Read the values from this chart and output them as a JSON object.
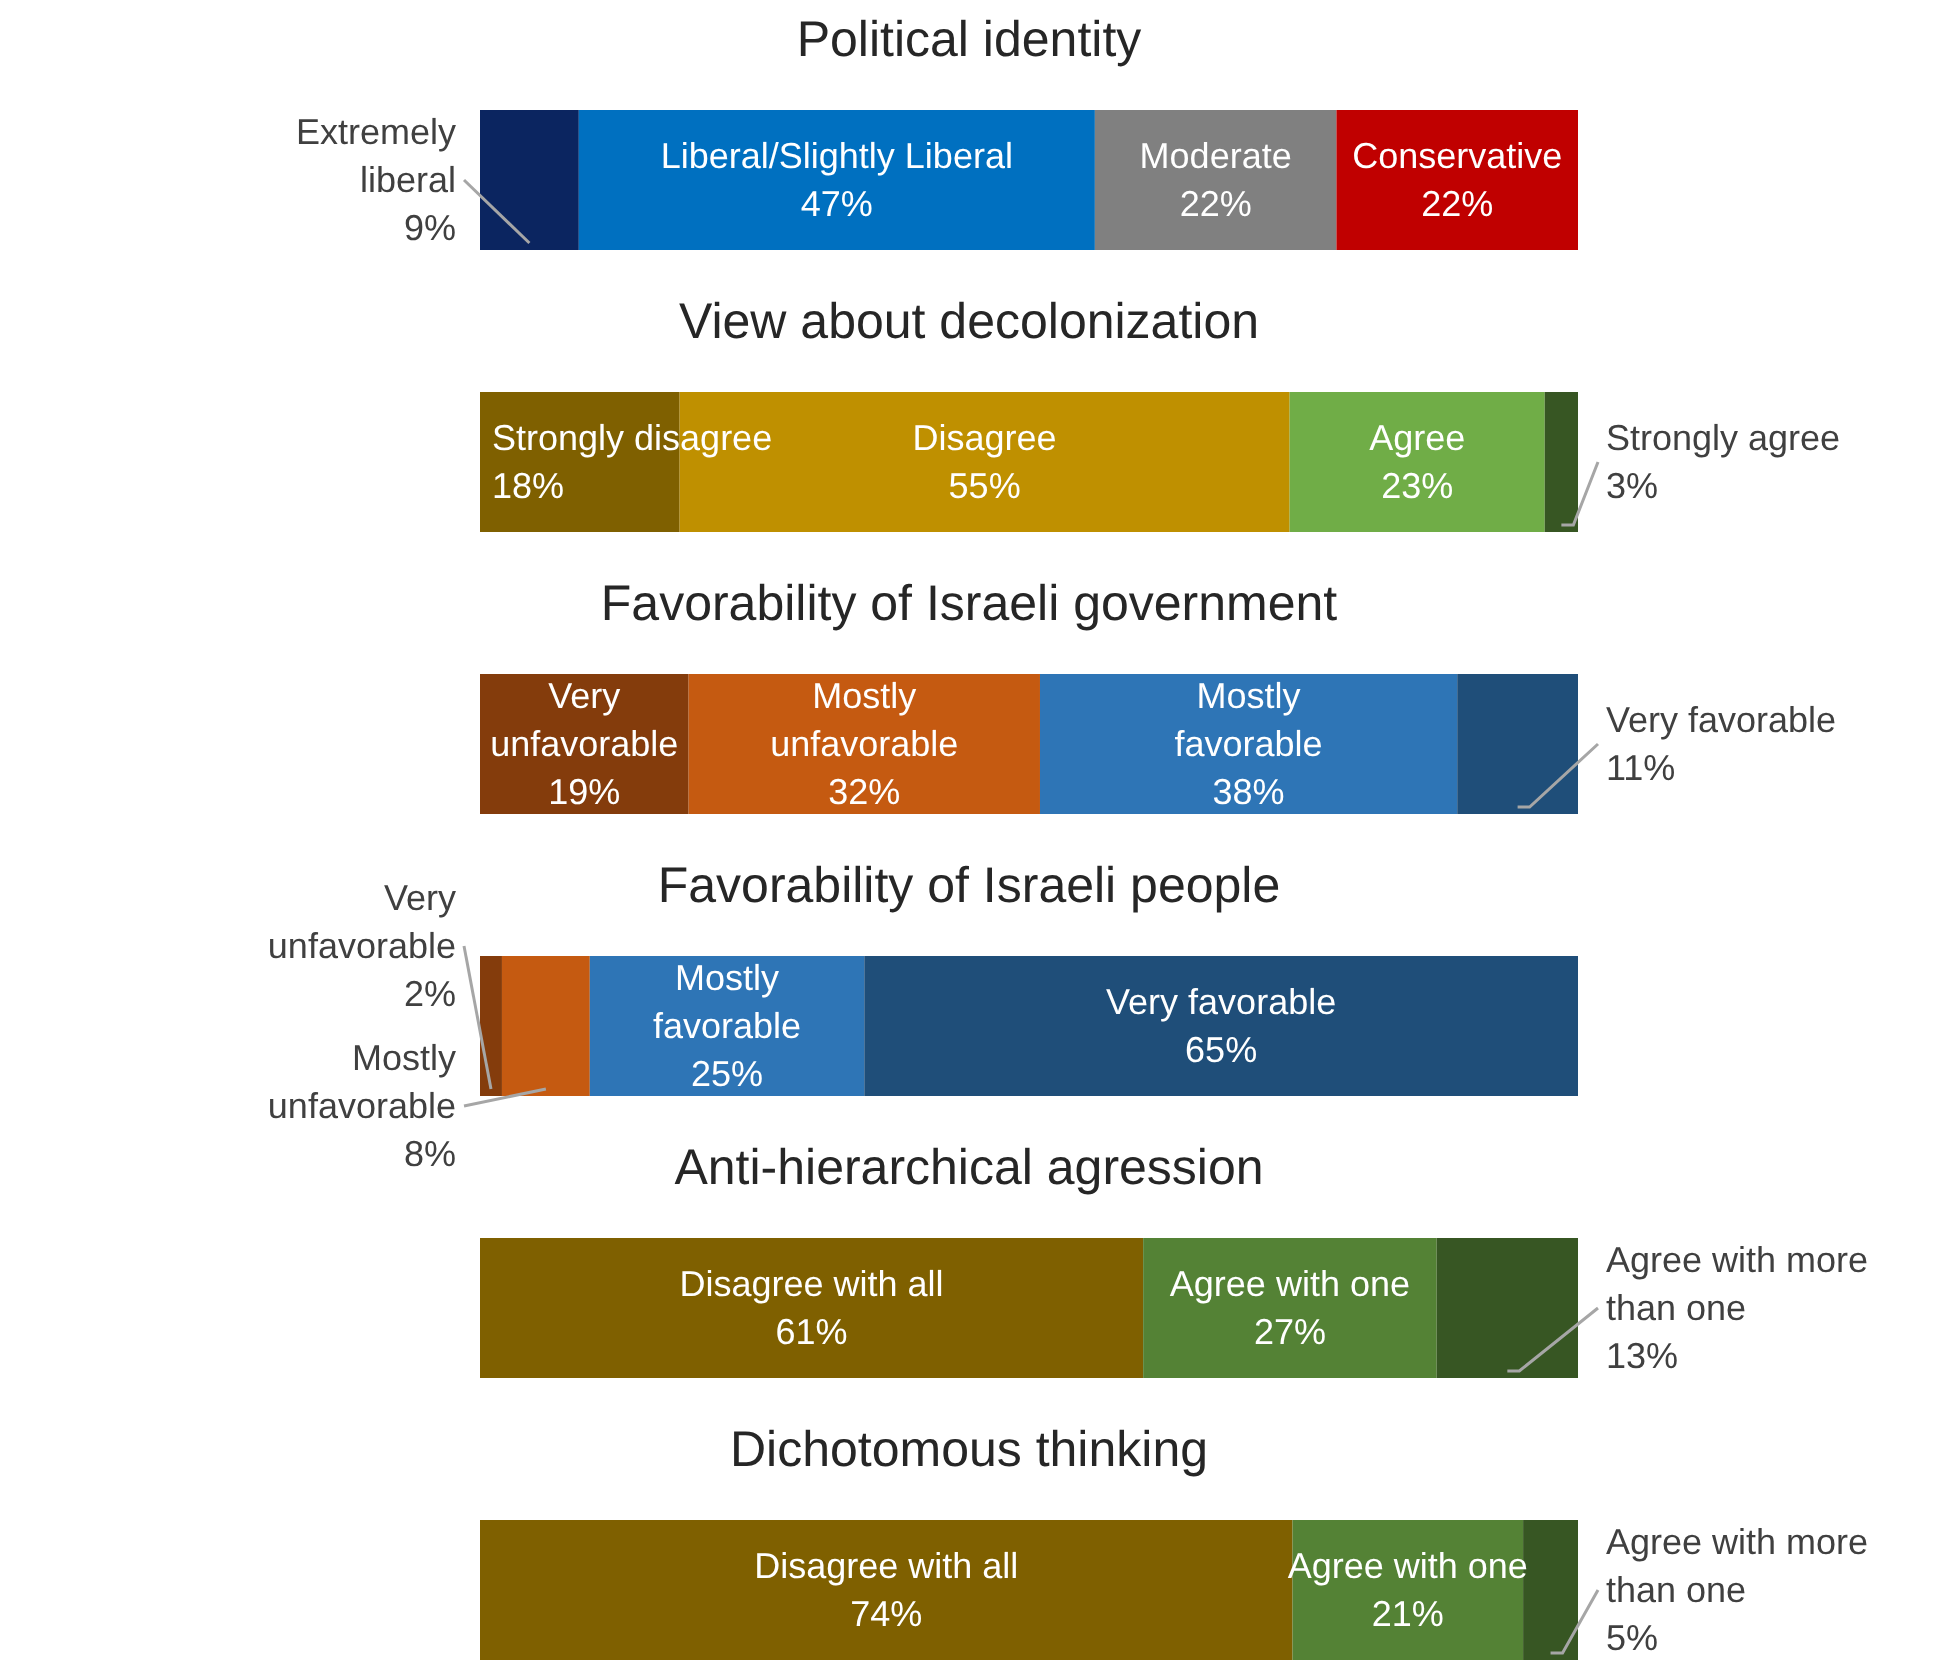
{
  "chart_data": [
    {
      "type": "bar",
      "orientation": "horizontal",
      "stacked": true,
      "title": "Political identity",
      "categories": [
        null
      ],
      "tick_labels": false,
      "series": [
        {
          "name": "Extremely\nliberal",
          "color": "#0b2560",
          "values": [
            9
          ],
          "value_labels": [
            "9%"
          ]
        },
        {
          "name": "Liberal/Slightly Liberal",
          "color": "#0070c0",
          "values": [
            47
          ],
          "value_labels": [
            "47%"
          ]
        },
        {
          "name": "Moderate",
          "color": "#808080",
          "values": [
            22
          ],
          "value_labels": [
            "22%"
          ]
        },
        {
          "name": "Conservative",
          "color": "#c00000",
          "values": [
            22
          ],
          "value_labels": [
            "22%"
          ]
        }
      ]
    },
    {
      "type": "bar",
      "orientation": "horizontal",
      "stacked": true,
      "title": "View about decolonization",
      "categories": [
        null
      ],
      "tick_labels": false,
      "series": [
        {
          "name": "Strongly disagree",
          "color": "#7f6000",
          "values": [
            18
          ],
          "value_labels": [
            "18%"
          ]
        },
        {
          "name": "Disagree",
          "color": "#bf9000",
          "values": [
            55
          ],
          "value_labels": [
            "55%"
          ]
        },
        {
          "name": "Agree",
          "color": "#70ad47",
          "values": [
            23
          ],
          "value_labels": [
            "23%"
          ]
        },
        {
          "name": "Strongly agree",
          "color": "#375623",
          "values": [
            3
          ],
          "value_labels": [
            "3%"
          ]
        }
      ]
    },
    {
      "type": "bar",
      "orientation": "horizontal",
      "stacked": true,
      "title": "Favorability of Israeli government",
      "categories": [
        null
      ],
      "tick_labels": false,
      "series": [
        {
          "name": "Very\nunfavorable",
          "color": "#843c0c",
          "values": [
            19
          ],
          "value_labels": [
            "19%"
          ]
        },
        {
          "name": "Mostly\nunfavorable",
          "color": "#c55a11",
          "values": [
            32
          ],
          "value_labels": [
            "32%"
          ]
        },
        {
          "name": "Mostly\nfavorable",
          "color": "#2e75b6",
          "values": [
            38
          ],
          "value_labels": [
            "38%"
          ]
        },
        {
          "name": "Very favorable",
          "color": "#1f4e79",
          "values": [
            11
          ],
          "value_labels": [
            "11%"
          ]
        }
      ]
    },
    {
      "type": "bar",
      "orientation": "horizontal",
      "stacked": true,
      "title": "Favorability of Israeli people",
      "categories": [
        null
      ],
      "tick_labels": false,
      "series": [
        {
          "name": "Very\nunfavorable",
          "color": "#843c0c",
          "values": [
            2
          ],
          "value_labels": [
            "2%"
          ]
        },
        {
          "name": "Mostly\nunfavorable",
          "color": "#c55a11",
          "values": [
            8
          ],
          "value_labels": [
            "8%"
          ]
        },
        {
          "name": "Mostly\nfavorable",
          "color": "#2e75b6",
          "values": [
            25
          ],
          "value_labels": [
            "25%"
          ]
        },
        {
          "name": "Very favorable",
          "color": "#1f4e79",
          "values": [
            65
          ],
          "value_labels": [
            "65%"
          ]
        }
      ]
    },
    {
      "type": "bar",
      "orientation": "horizontal",
      "stacked": true,
      "title": "Anti-hierarchical agression",
      "categories": [
        null
      ],
      "tick_labels": false,
      "series": [
        {
          "name": "Disagree with all",
          "color": "#7f6000",
          "values": [
            61
          ],
          "value_labels": [
            "61%"
          ]
        },
        {
          "name": "Agree with one",
          "color": "#548235",
          "values": [
            27
          ],
          "value_labels": [
            "27%"
          ]
        },
        {
          "name": "Agree with more\nthan one",
          "color": "#375623",
          "values": [
            13
          ],
          "value_labels": [
            "13%"
          ]
        }
      ]
    },
    {
      "type": "bar",
      "orientation": "horizontal",
      "stacked": true,
      "title": "Dichotomous thinking",
      "categories": [
        null
      ],
      "tick_labels": false,
      "series": [
        {
          "name": "Disagree with all",
          "color": "#7f6000",
          "values": [
            74
          ],
          "value_labels": [
            "74%"
          ]
        },
        {
          "name": "Agree with one",
          "color": "#548235",
          "values": [
            21
          ],
          "value_labels": [
            "21%"
          ]
        },
        {
          "name": "Agree with more\nthan one",
          "color": "#375623",
          "values": [
            5
          ],
          "value_labels": [
            "5%"
          ]
        }
      ]
    }
  ]
}
